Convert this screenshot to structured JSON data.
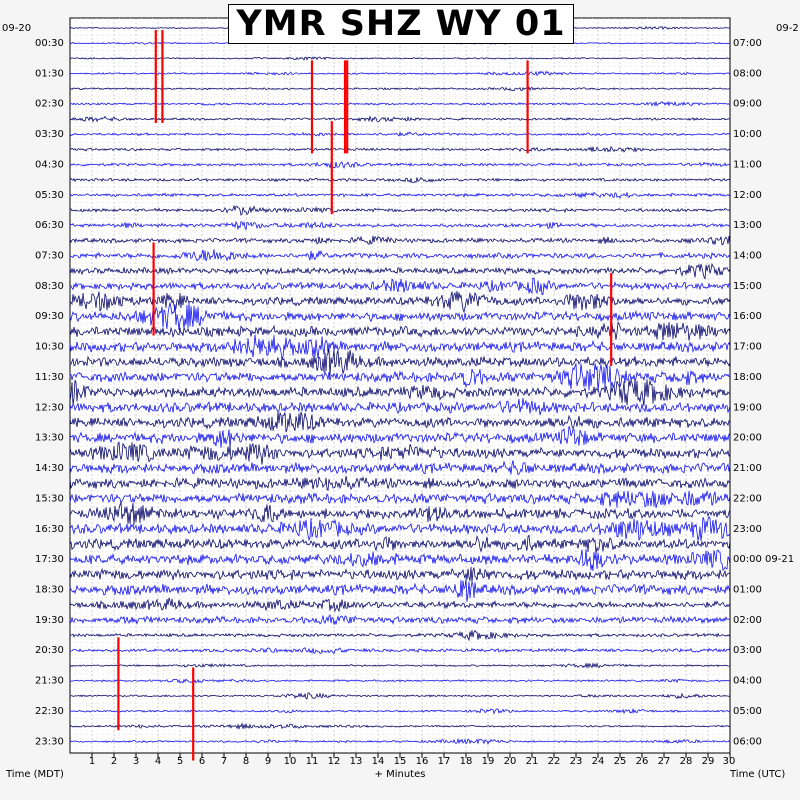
{
  "chart_data": {
    "type": "helicorder",
    "title": "YMR SHZ WY 01",
    "left_date": "09-20",
    "right_date": "09-2",
    "left_axis_label": "Time (MDT)",
    "right_axis_label": "Time (UTC)",
    "xlabel": "+ Minutes",
    "x_ticks": [
      1,
      2,
      3,
      4,
      5,
      6,
      7,
      8,
      9,
      10,
      11,
      12,
      13,
      14,
      15,
      16,
      17,
      18,
      19,
      20,
      21,
      22,
      23,
      24,
      25,
      26,
      27,
      28,
      29,
      30
    ],
    "xlim": [
      0,
      30
    ],
    "line_minutes": 30,
    "left_times": [
      "00:30",
      "01:30",
      "02:30",
      "03:30",
      "04:30",
      "05:30",
      "06:30",
      "07:30",
      "08:30",
      "09:30",
      "10:30",
      "11:30",
      "12:30",
      "13:30",
      "14:30",
      "15:30",
      "16:30",
      "17:30",
      "18:30",
      "19:30",
      "20:30",
      "21:30",
      "22:30",
      "23:30"
    ],
    "right_times": [
      "07:00",
      "08:00",
      "09:00",
      "10:00",
      "11:00",
      "12:00",
      "13:00",
      "14:00",
      "15:00",
      "16:00",
      "17:00",
      "18:00",
      "19:00",
      "20:00",
      "21:00",
      "22:00",
      "23:00",
      "00:00 09-21",
      "01:00",
      "02:00",
      "03:00",
      "04:00",
      "05:00",
      "06:00"
    ],
    "trace_count": 48,
    "trace_colors": [
      "#0a0a6e",
      "#1515f0"
    ],
    "clip_color": "#ff0000",
    "grid": true,
    "clipped_events": [
      {
        "line": 0,
        "minute": 3.9
      },
      {
        "line": 0,
        "minute": 4.2
      },
      {
        "line": 1,
        "minute": 11.0
      },
      {
        "line": 1,
        "minute": 12.5
      },
      {
        "line": 1,
        "minute": 12.6
      },
      {
        "line": 1,
        "minute": 20.8
      },
      {
        "line": 3,
        "minute": 11.9
      },
      {
        "line": 7,
        "minute": 3.8
      },
      {
        "line": 8,
        "minute": 24.6
      },
      {
        "line": 20,
        "minute": 2.2
      },
      {
        "line": 21,
        "minute": 5.6
      }
    ]
  }
}
